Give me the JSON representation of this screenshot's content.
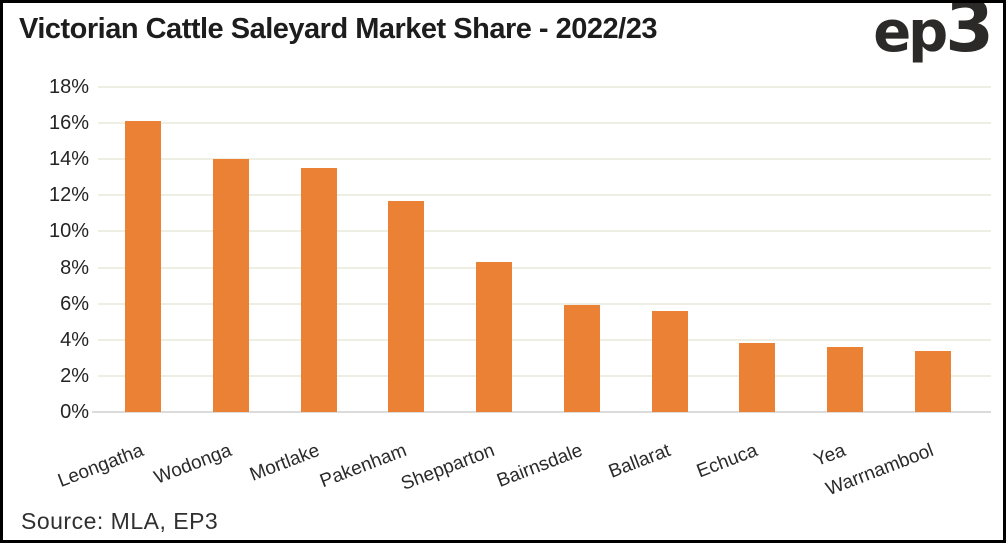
{
  "header": {
    "logo": {
      "full": "ep3",
      "ep": "ep",
      "three": "3"
    }
  },
  "footer": {
    "source": "Source: MLA, EP3"
  },
  "chart_data": {
    "type": "bar",
    "title": "Victorian Cattle Saleyard Market Share - 2022/23",
    "categories": [
      "Leongatha",
      "Wodonga",
      "Mortlake",
      "Pakenham",
      "Shepparton",
      "Bairnsdale",
      "Ballarat",
      "Echuca",
      "Yea",
      "Warrnambool"
    ],
    "values": [
      16.1,
      14.0,
      13.5,
      11.7,
      8.3,
      5.9,
      5.6,
      3.8,
      3.6,
      3.4
    ],
    "value_unit": "%",
    "xlabel": "",
    "ylabel": "",
    "ylim": [
      0,
      18
    ],
    "ytick_step": 2,
    "ytick_labels": [
      "0%",
      "2%",
      "4%",
      "6%",
      "8%",
      "10%",
      "12%",
      "14%",
      "16%",
      "18%"
    ],
    "grid": true,
    "legend": false,
    "x_label_rotation_deg": -21,
    "bar_color": "#EA8135",
    "gridline_color": "#EFEEE3",
    "axis_line_color": "#DBDBDB",
    "text_color": "#1F1F1F",
    "source_note": "Source: MLA, EP3"
  }
}
